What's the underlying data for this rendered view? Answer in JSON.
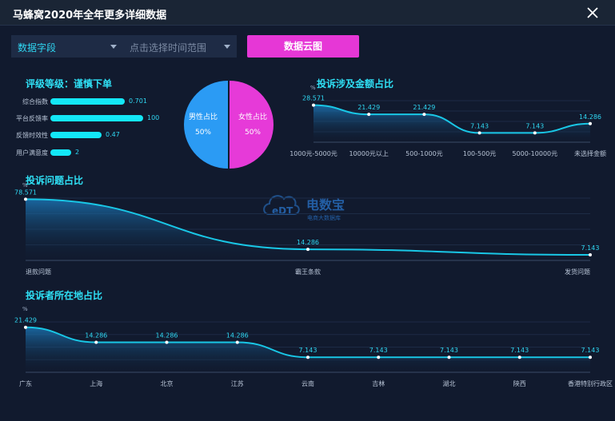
{
  "window": {
    "title": "马蜂窝2020年全年更多详细数据"
  },
  "toolbar": {
    "field_select": "数据字段",
    "time_placeholder": "点击选择时间范围",
    "cloud_button": "数据云图"
  },
  "rating": {
    "title": "评级等级：谨慎下单",
    "items": [
      {
        "label": "综合指数",
        "value": "0.701",
        "fraction": 0.8
      },
      {
        "label": "平台反馈率",
        "value": "100",
        "fraction": 1.0
      },
      {
        "label": "反馈时效性",
        "value": "0.47",
        "fraction": 0.55
      },
      {
        "label": "用户满意度",
        "value": "2",
        "fraction": 0.22
      }
    ]
  },
  "gender": {
    "male_label": "男性占比",
    "male_value": "50%",
    "female_label": "女性占比",
    "female_value": "50%",
    "colors": {
      "male": "#2b9bf4",
      "female": "#e63ad8"
    }
  },
  "watermark": {
    "brand": "电数宝",
    "tagline": "电商大数据库",
    "logo_text": "eDT"
  },
  "chart_data": [
    {
      "type": "area",
      "title": "投诉涉及金额占比",
      "unit": "%",
      "categories": [
        "1000元-5000元",
        "10000元以上",
        "500-1000元",
        "100-500元",
        "5000-10000元",
        "未选择金额"
      ],
      "values": [
        28.571,
        21.429,
        21.429,
        7.143,
        7.143,
        14.286
      ],
      "ylim": [
        0,
        32
      ]
    },
    {
      "type": "area",
      "title": "投诉问题占比",
      "unit": "%",
      "categories": [
        "退款问题",
        "霸王条款",
        "发货问题"
      ],
      "values": [
        78.571,
        14.286,
        7.143
      ],
      "ylim": [
        0,
        80
      ]
    },
    {
      "type": "area",
      "title": "投诉者所在地占比",
      "unit": "%",
      "categories": [
        "广东",
        "上海",
        "北京",
        "江苏",
        "云南",
        "吉林",
        "湖北",
        "陕西",
        "香港特别行政区"
      ],
      "values": [
        21.429,
        14.286,
        14.286,
        14.286,
        7.143,
        7.143,
        7.143,
        7.143,
        7.143
      ],
      "ylim": [
        0,
        24
      ]
    }
  ]
}
